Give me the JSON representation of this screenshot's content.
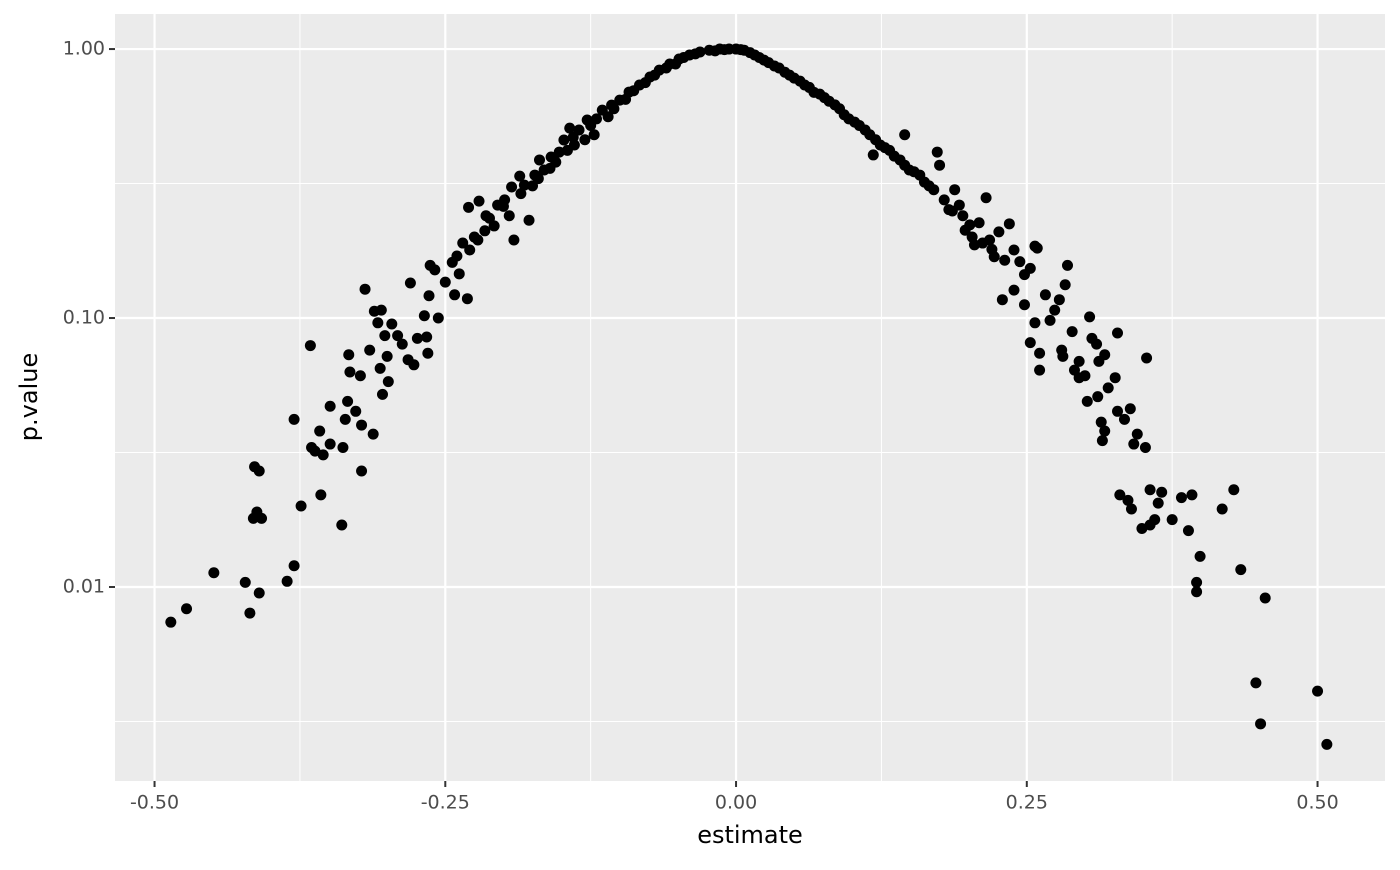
{
  "chart_data": {
    "type": "scatter",
    "x_label": "estimate",
    "y_label": "p.value",
    "color": "#000000",
    "log_y": true,
    "grid": true,
    "xlim": [
      -0.534,
      0.558
    ],
    "ylim": [
      0.0019,
      1.35
    ],
    "xticks": [
      {
        "value": -0.5,
        "label": "-0.50"
      },
      {
        "value": -0.25,
        "label": "-0.25"
      },
      {
        "value": 0,
        "label": "0.00"
      },
      {
        "value": 0.25,
        "label": "0.25"
      },
      {
        "value": 0.5,
        "label": "0.50"
      }
    ],
    "yticks": [
      {
        "value": 0.01,
        "label": "0.01"
      },
      {
        "value": 0.1,
        "label": "0.10"
      },
      {
        "value": 1,
        "label": "1.00"
      }
    ],
    "x": [
      -0.486,
      -0.4725,
      -0.449,
      -0.422,
      -0.418,
      -0.41,
      -0.414,
      -0.41,
      -0.415,
      -0.412,
      -0.408,
      -0.386,
      -0.38,
      -0.38,
      -0.374,
      -0.366,
      -0.365,
      -0.362,
      -0.357,
      -0.358,
      -0.355,
      -0.349,
      -0.349,
      -0.339,
      -0.338,
      -0.336,
      -0.334,
      -0.333,
      -0.332,
      -0.327,
      -0.323,
      -0.322,
      -0.322,
      -0.319,
      -0.315,
      -0.312,
      -0.311,
      -0.308,
      -0.306,
      -0.305,
      -0.304,
      -0.302,
      -0.3,
      -0.299,
      -0.296,
      -0.291,
      -0.287,
      -0.282,
      -0.28,
      -0.277,
      -0.274,
      -0.268,
      -0.266,
      -0.265,
      -0.264,
      -0.263,
      -0.259,
      -0.256,
      -0.25,
      -0.244,
      -0.242,
      -0.238,
      -0.231,
      -0.23,
      -0.229,
      -0.222,
      -0.221,
      -0.216,
      -0.212,
      -0.205,
      -0.199,
      -0.193,
      -0.191,
      -0.186,
      -0.182,
      -0.178,
      -0.173,
      -0.169,
      -0.165,
      -0.159,
      -0.152,
      -0.148,
      -0.143,
      -0.139,
      -0.135,
      -0.128,
      -0.122,
      -0.115,
      -0.107,
      -0.1,
      -0.092,
      -0.083,
      -0.074,
      -0.066,
      -0.057,
      -0.049,
      -0.04,
      -0.031,
      -0.023,
      -0.014,
      -0.006,
      0,
      -0.24,
      -0.235,
      -0.225,
      -0.215,
      -0.208,
      -0.2,
      -0.195,
      -0.185,
      -0.175,
      -0.17,
      -0.16,
      -0.155,
      -0.145,
      -0.14,
      -0.13,
      -0.125,
      -0.12,
      -0.11,
      -0.105,
      -0.095,
      -0.088,
      -0.078,
      -0.07,
      -0.06,
      -0.052,
      -0.045,
      -0.035,
      -0.018,
      -0.01,
      0.004,
      0.012,
      0.02,
      0.028,
      0.037,
      0.046,
      0.055,
      0.063,
      0.072,
      0.08,
      0.089,
      0.097,
      0.106,
      0.115,
      0.12,
      0.128,
      0.136,
      0.145,
      0.153,
      0.162,
      0.17,
      0.186,
      0.195,
      0.203,
      0.212,
      0.22,
      0.007,
      0.016,
      0.024,
      0.033,
      0.042,
      0.05,
      0.059,
      0.067,
      0.076,
      0.085,
      0.093,
      0.102,
      0.111,
      0.118,
      0.124,
      0.132,
      0.141,
      0.145,
      0.149,
      0.158,
      0.166,
      0.173,
      0.175,
      0.179,
      0.183,
      0.188,
      0.192,
      0.197,
      0.201,
      0.205,
      0.209,
      0.215,
      0.218,
      0.222,
      0.226,
      0.231,
      0.235,
      0.239,
      0.244,
      0.248,
      0.253,
      0.257,
      0.259,
      0.229,
      0.239,
      0.248,
      0.253,
      0.257,
      0.261,
      0.261,
      0.266,
      0.27,
      0.274,
      0.278,
      0.28,
      0.281,
      0.283,
      0.285,
      0.289,
      0.291,
      0.295,
      0.295,
      0.3,
      0.302,
      0.304,
      0.306,
      0.31,
      0.311,
      0.312,
      0.314,
      0.315,
      0.317,
      0.317,
      0.32,
      0.326,
      0.328,
      0.328,
      0.33,
      0.334,
      0.337,
      0.339,
      0.34,
      0.342,
      0.345,
      0.349,
      0.352,
      0.353,
      0.356,
      0.356,
      0.36,
      0.363,
      0.366,
      0.375,
      0.383,
      0.389,
      0.392,
      0.399,
      0.396,
      0.396,
      0.418,
      0.428,
      0.434,
      0.447,
      0.451,
      0.455,
      0.5,
      0.508
    ],
    "values": [
      0.0074,
      0.0083,
      0.0113,
      0.0104,
      0.008,
      0.0095,
      0.028,
      0.027,
      0.018,
      0.019,
      0.018,
      0.0105,
      0.012,
      0.042,
      0.02,
      0.079,
      0.033,
      0.032,
      0.022,
      0.038,
      0.031,
      0.047,
      0.034,
      0.017,
      0.033,
      0.042,
      0.049,
      0.073,
      0.063,
      0.045,
      0.061,
      0.04,
      0.027,
      0.128,
      0.076,
      0.037,
      0.106,
      0.096,
      0.065,
      0.107,
      0.052,
      0.086,
      0.072,
      0.058,
      0.095,
      0.086,
      0.08,
      0.07,
      0.135,
      0.067,
      0.084,
      0.102,
      0.085,
      0.074,
      0.121,
      0.157,
      0.151,
      0.1,
      0.136,
      0.161,
      0.122,
      0.146,
      0.118,
      0.258,
      0.179,
      0.195,
      0.272,
      0.211,
      0.235,
      0.263,
      0.275,
      0.307,
      0.195,
      0.337,
      0.312,
      0.231,
      0.34,
      0.387,
      0.355,
      0.397,
      0.414,
      0.459,
      0.508,
      0.44,
      0.5,
      0.545,
      0.48,
      0.593,
      0.619,
      0.646,
      0.692,
      0.735,
      0.787,
      0.835,
      0.88,
      0.918,
      0.95,
      0.975,
      0.99,
      1.0,
      1.0,
      1.0,
      0.17,
      0.19,
      0.2,
      0.24,
      0.22,
      0.26,
      0.24,
      0.29,
      0.31,
      0.33,
      0.36,
      0.38,
      0.42,
      0.47,
      0.46,
      0.52,
      0.55,
      0.56,
      0.6,
      0.65,
      0.7,
      0.75,
      0.8,
      0.85,
      0.88,
      0.93,
      0.96,
      0.985,
      0.995,
      0.995,
      0.97,
      0.93,
      0.89,
      0.85,
      0.8,
      0.76,
      0.72,
      0.68,
      0.64,
      0.6,
      0.55,
      0.52,
      0.48,
      0.46,
      0.43,
      0.4,
      0.37,
      0.35,
      0.32,
      0.3,
      0.25,
      0.24,
      0.2,
      0.19,
      0.18,
      0.99,
      0.95,
      0.91,
      0.865,
      0.82,
      0.78,
      0.735,
      0.69,
      0.66,
      0.62,
      0.57,
      0.535,
      0.5,
      0.404,
      0.44,
      0.42,
      0.387,
      0.48,
      0.355,
      0.34,
      0.31,
      0.414,
      0.37,
      0.275,
      0.253,
      0.3,
      0.263,
      0.212,
      0.222,
      0.187,
      0.226,
      0.28,
      0.195,
      0.169,
      0.209,
      0.164,
      0.224,
      0.179,
      0.162,
      0.145,
      0.153,
      0.185,
      0.182,
      0.117,
      0.127,
      0.112,
      0.081,
      0.096,
      0.074,
      0.064,
      0.122,
      0.098,
      0.107,
      0.117,
      0.076,
      0.072,
      0.133,
      0.157,
      0.089,
      0.064,
      0.069,
      0.06,
      0.061,
      0.049,
      0.101,
      0.084,
      0.08,
      0.051,
      0.069,
      0.041,
      0.035,
      0.073,
      0.038,
      0.055,
      0.06,
      0.088,
      0.045,
      0.022,
      0.042,
      0.021,
      0.046,
      0.0195,
      0.034,
      0.037,
      0.0165,
      0.033,
      0.071,
      0.023,
      0.017,
      0.0178,
      0.0205,
      0.0225,
      0.0178,
      0.0215,
      0.0162,
      0.022,
      0.013,
      0.0104,
      0.0096,
      0.0195,
      0.023,
      0.0116,
      0.0044,
      0.0031,
      0.0091,
      0.0041,
      0.0026
    ]
  }
}
